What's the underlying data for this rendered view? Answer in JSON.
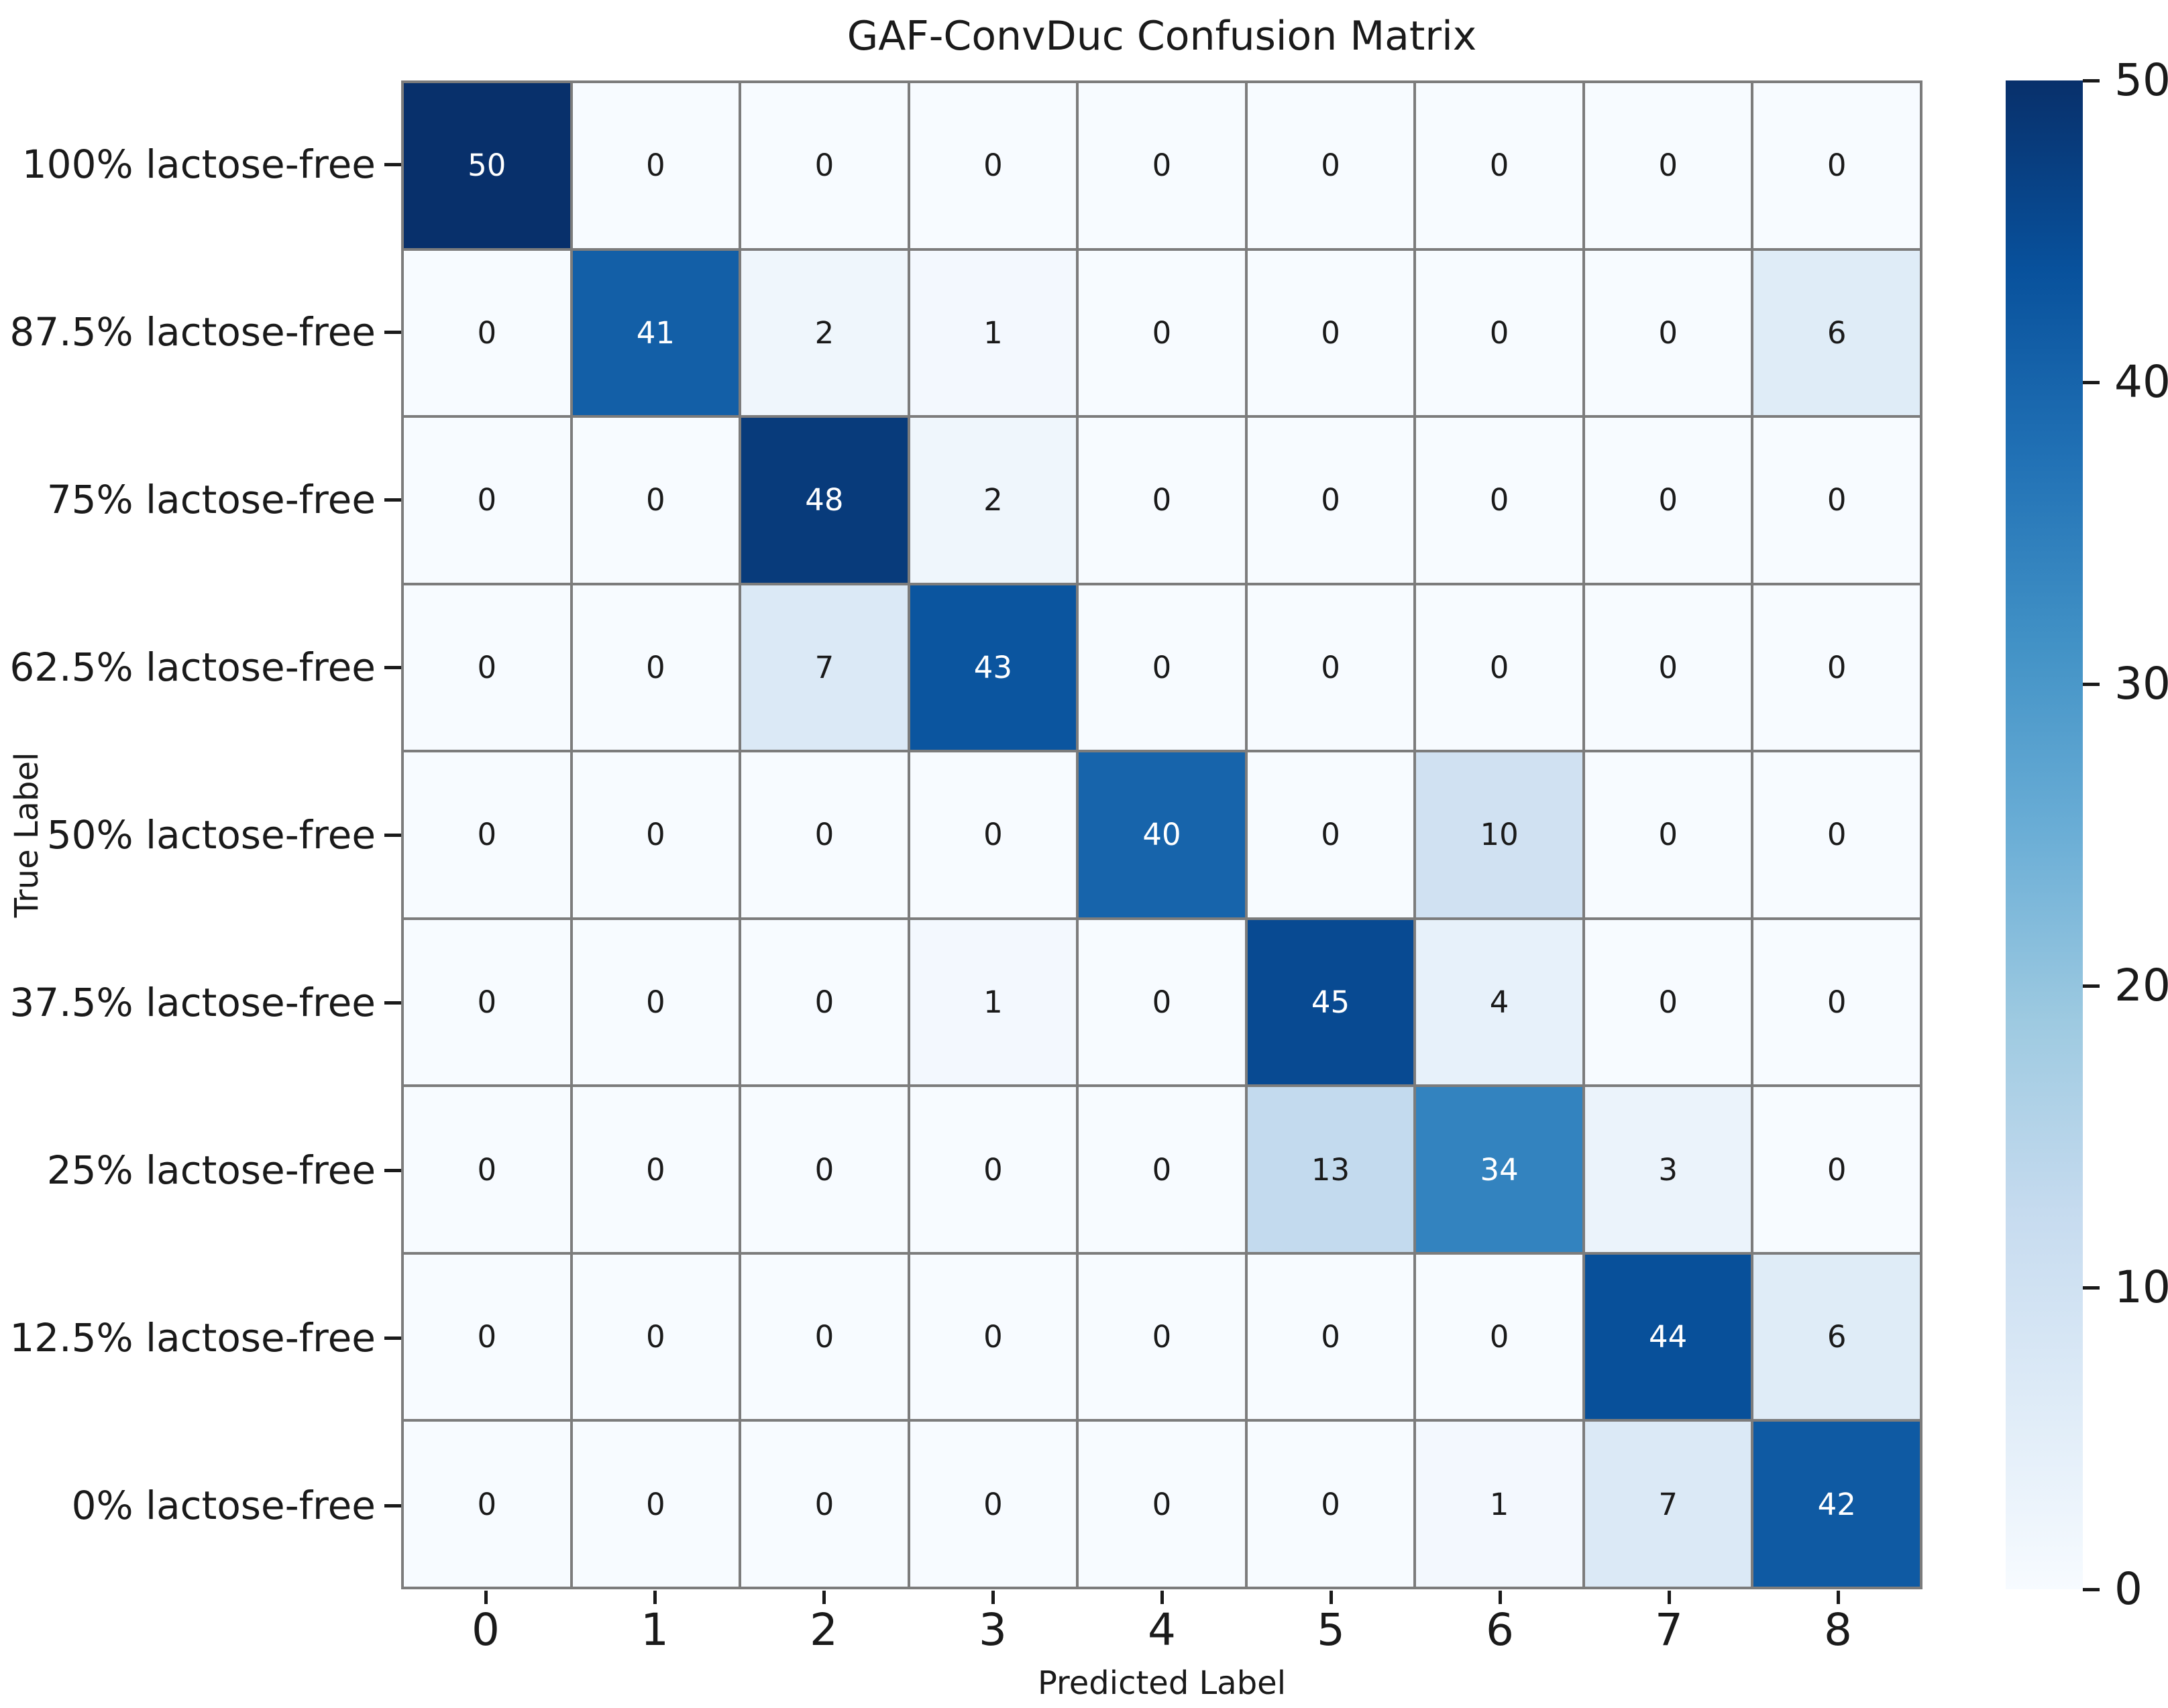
{
  "chart_data": {
    "type": "heatmap",
    "title": "GAF-ConvDuc Confusion Matrix",
    "xlabel": "Predicted Label",
    "ylabel": "True Label",
    "x_tick_labels": [
      "0",
      "1",
      "2",
      "3",
      "4",
      "5",
      "6",
      "7",
      "8"
    ],
    "y_tick_labels": [
      "100% lactose-free",
      "87.5% lactose-free",
      "75% lactose-free",
      "62.5% lactose-free",
      "50% lactose-free",
      "37.5% lactose-free",
      "25% lactose-free",
      "12.5% lactose-free",
      "0% lactose-free"
    ],
    "matrix": [
      [
        50,
        0,
        0,
        0,
        0,
        0,
        0,
        0,
        0
      ],
      [
        0,
        41,
        2,
        1,
        0,
        0,
        0,
        0,
        6
      ],
      [
        0,
        0,
        48,
        2,
        0,
        0,
        0,
        0,
        0
      ],
      [
        0,
        0,
        7,
        43,
        0,
        0,
        0,
        0,
        0
      ],
      [
        0,
        0,
        0,
        0,
        40,
        0,
        10,
        0,
        0
      ],
      [
        0,
        0,
        0,
        1,
        0,
        45,
        4,
        0,
        0
      ],
      [
        0,
        0,
        0,
        0,
        0,
        13,
        34,
        3,
        0
      ],
      [
        0,
        0,
        0,
        0,
        0,
        0,
        0,
        44,
        6
      ],
      [
        0,
        0,
        0,
        0,
        0,
        0,
        1,
        7,
        42
      ]
    ],
    "vmin": 0,
    "vmax": 50,
    "colormap": "Blues",
    "colormap_stops": [
      "#f7fbff",
      "#deebf7",
      "#c6dbef",
      "#9ecae1",
      "#6baed6",
      "#4292c6",
      "#2171b5",
      "#08519c",
      "#08306b"
    ],
    "colorbar_ticks": [
      "0",
      "10",
      "20",
      "30",
      "40",
      "50"
    ],
    "colorbar_position": "right",
    "grid": "on",
    "grid_line_color": "#7c7c7c",
    "annotation_text_dark": "#1a1a1a",
    "annotation_text_light": "#ffffff",
    "tick_color": "#1a1a1a"
  }
}
